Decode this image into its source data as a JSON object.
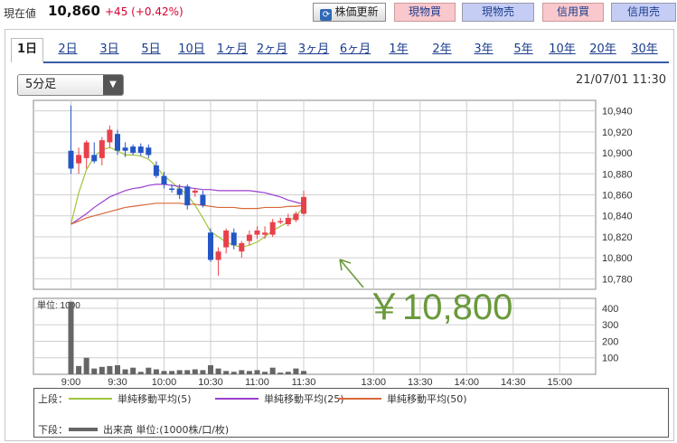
{
  "header": {
    "now_label": "現在値",
    "price": "10,860",
    "change": "+45 (+0.42%)",
    "update_button": "株価更新",
    "update_icon": "refresh-icon",
    "buy_spot": "現物買",
    "sell_spot": "現物売",
    "buy_margin": "信用買",
    "sell_margin": "信用売"
  },
  "tabs": [
    "1日",
    "2日",
    "3日",
    "5日",
    "10日",
    "1ヶ月",
    "2ヶ月",
    "3ヶ月",
    "6ヶ月",
    "1年",
    "2年",
    "3年",
    "5年",
    "10年",
    "20年",
    "30年"
  ],
  "interval_select": {
    "value": "5分足"
  },
  "datetime": "21/07/01 11:30",
  "annotation": "￥10,800",
  "colors": {
    "up": "#e8414b",
    "down": "#2456c4",
    "ma5": "#9fc43c",
    "ma25": "#9b3fcf",
    "ma50": "#d9683a",
    "volume": "#666666",
    "annotation": "#6a9a3c"
  },
  "legend": {
    "upper_label": "上段：",
    "lower_label": "下段：",
    "ma5": "単純移動平均(5)",
    "ma25": "単純移動平均(25)",
    "ma50": "単純移動平均(50)",
    "volume": "出来高 単位:(1000株/口/枚)"
  },
  "chart_data": {
    "type": "candlestick",
    "x_ticks": [
      "9:00",
      "9:30",
      "10:00",
      "10:30",
      "11:00",
      "11:30",
      "13:00",
      "13:30",
      "14:00",
      "14:30",
      "15:00"
    ],
    "price_ticks": [
      "10,940",
      "10,920",
      "10,900",
      "10,880",
      "10,860",
      "10,840",
      "10,820",
      "10,800",
      "10,780"
    ],
    "ylim": [
      10770,
      10950
    ],
    "volume_unit_label": "単位: 1000",
    "volume_ticks": [
      "400",
      "300",
      "200",
      "100"
    ],
    "volume_ylim": [
      0,
      460
    ],
    "candles": [
      {
        "o": 10902,
        "h": 10945,
        "l": 10880,
        "c": 10885
      },
      {
        "o": 10890,
        "h": 10905,
        "l": 10880,
        "c": 10898
      },
      {
        "o": 10895,
        "h": 10912,
        "l": 10885,
        "c": 10910
      },
      {
        "o": 10898,
        "h": 10910,
        "l": 10890,
        "c": 10892
      },
      {
        "o": 10895,
        "h": 10915,
        "l": 10888,
        "c": 10912
      },
      {
        "o": 10910,
        "h": 10926,
        "l": 10905,
        "c": 10922
      },
      {
        "o": 10918,
        "h": 10922,
        "l": 10898,
        "c": 10902
      },
      {
        "o": 10905,
        "h": 10910,
        "l": 10896,
        "c": 10902
      },
      {
        "o": 10906,
        "h": 10908,
        "l": 10898,
        "c": 10900
      },
      {
        "o": 10906,
        "h": 10909,
        "l": 10897,
        "c": 10900
      },
      {
        "o": 10905,
        "h": 10908,
        "l": 10895,
        "c": 10898
      },
      {
        "o": 10888,
        "h": 10892,
        "l": 10876,
        "c": 10878
      },
      {
        "o": 10878,
        "h": 10882,
        "l": 10866,
        "c": 10870
      },
      {
        "o": 10866,
        "h": 10870,
        "l": 10862,
        "c": 10865
      },
      {
        "o": 10866,
        "h": 10870,
        "l": 10856,
        "c": 10860
      },
      {
        "o": 10868,
        "h": 10870,
        "l": 10846,
        "c": 10850
      },
      {
        "o": 10862,
        "h": 10866,
        "l": 10858,
        "c": 10864
      },
      {
        "o": 10860,
        "h": 10864,
        "l": 10848,
        "c": 10850
      },
      {
        "o": 10824,
        "h": 10828,
        "l": 10796,
        "c": 10798
      },
      {
        "o": 10798,
        "h": 10810,
        "l": 10783,
        "c": 10806
      },
      {
        "o": 10810,
        "h": 10828,
        "l": 10804,
        "c": 10826
      },
      {
        "o": 10824,
        "h": 10828,
        "l": 10808,
        "c": 10812
      },
      {
        "o": 10806,
        "h": 10816,
        "l": 10800,
        "c": 10814
      },
      {
        "o": 10816,
        "h": 10826,
        "l": 10812,
        "c": 10822
      },
      {
        "o": 10822,
        "h": 10830,
        "l": 10818,
        "c": 10826
      },
      {
        "o": 10822,
        "h": 10830,
        "l": 10818,
        "c": 10824
      },
      {
        "o": 10822,
        "h": 10837,
        "l": 10820,
        "c": 10834
      },
      {
        "o": 10834,
        "h": 10838,
        "l": 10832,
        "c": 10835
      },
      {
        "o": 10832,
        "h": 10842,
        "l": 10830,
        "c": 10838
      },
      {
        "o": 10836,
        "h": 10844,
        "l": 10834,
        "c": 10842
      },
      {
        "o": 10842,
        "h": 10864,
        "l": 10840,
        "c": 10858
      }
    ],
    "volumes": [
      440,
      50,
      100,
      35,
      45,
      50,
      55,
      30,
      40,
      15,
      40,
      30,
      20,
      20,
      25,
      25,
      30,
      25,
      55,
      35,
      20,
      15,
      25,
      20,
      25,
      15,
      40,
      10,
      15,
      35,
      20
    ],
    "series": [
      {
        "name": "単純移動平均(5)",
        "values": [
          10832,
          10862,
          10884,
          10896,
          10903,
          10905,
          10902,
          10898,
          10898,
          10897,
          10894,
          10887,
          10878,
          10872,
          10866,
          10860,
          10850,
          10838,
          10825,
          10820,
          10815,
          10812,
          10810,
          10812,
          10815,
          10820,
          10826,
          10830,
          10834,
          10840,
          10848
        ]
      },
      {
        "name": "単純移動平均(25)",
        "values": [
          10832,
          10837,
          10842,
          10848,
          10853,
          10858,
          10861,
          10864,
          10866,
          10867,
          10869,
          10870,
          10870,
          10869,
          10868,
          10867,
          10866,
          10865,
          10865,
          10864,
          10864,
          10864,
          10864,
          10864,
          10863,
          10862,
          10860,
          10858,
          10855,
          10853,
          10851
        ]
      },
      {
        "name": "単純移動平均(50)",
        "values": [
          10832,
          10835,
          10838,
          10840,
          10842,
          10844,
          10846,
          10848,
          10849,
          10850,
          10851,
          10852,
          10852,
          10852,
          10852,
          10851,
          10851,
          10850,
          10849,
          10848,
          10848,
          10848,
          10847,
          10847,
          10847,
          10848,
          10848,
          10848,
          10849,
          10849,
          10850
        ]
      }
    ]
  }
}
